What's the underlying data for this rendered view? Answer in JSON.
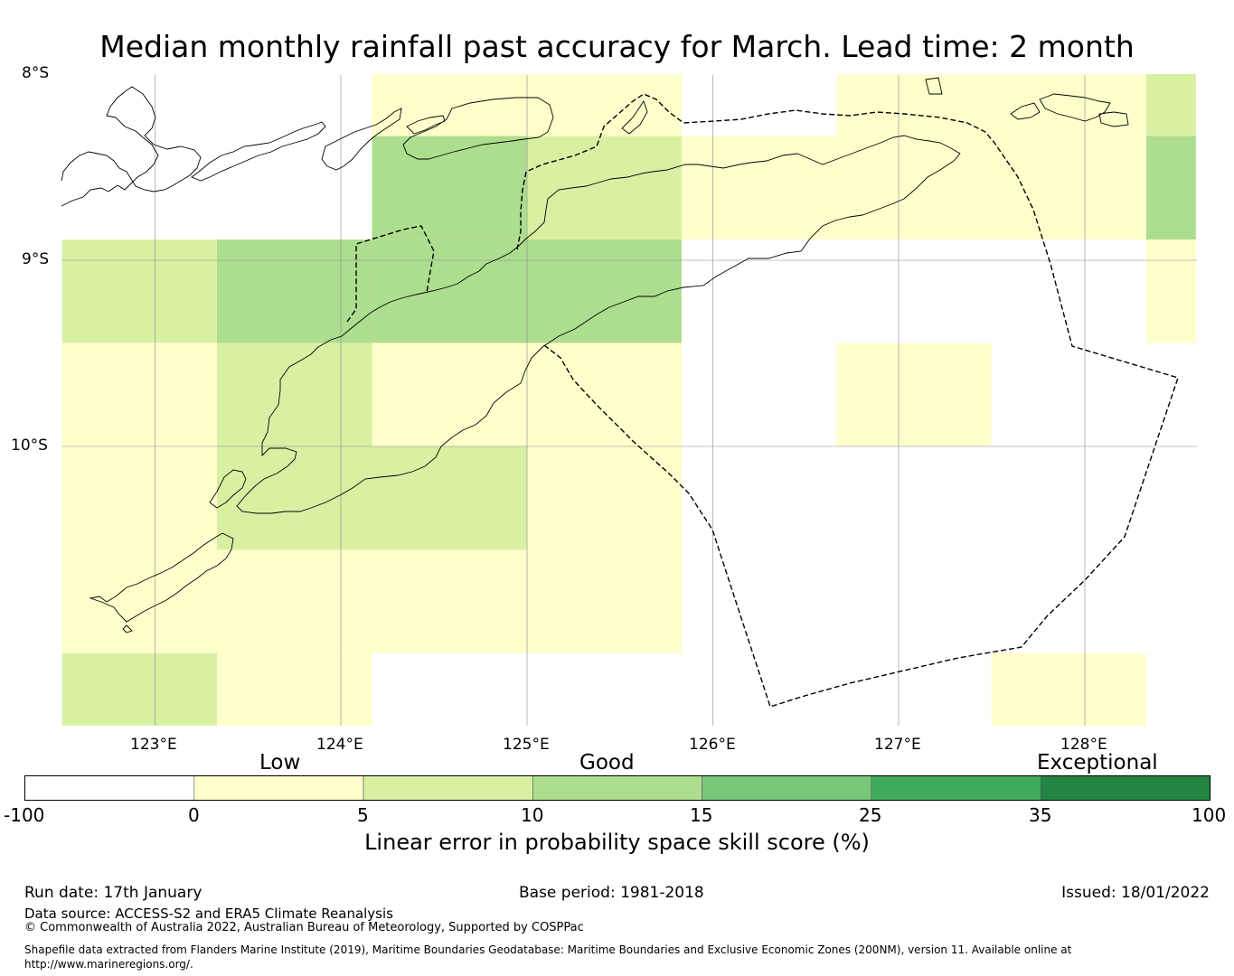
{
  "title": "Median monthly rainfall past accuracy for March. Lead time: 2 month",
  "map": {
    "lat_labels": [
      "8°S",
      "9°S",
      "10°S"
    ],
    "lon_labels": [
      "123°E",
      "124°E",
      "125°E",
      "126°E",
      "127°E",
      "128°E"
    ],
    "grid_columns_lon": [
      122.5,
      123.333,
      124.167,
      125.0,
      125.833,
      126.667,
      127.5,
      128.333,
      128.6
    ],
    "grid_rows_lat": [
      -8.0,
      -8.333,
      -8.889,
      -9.444,
      -10.0,
      -10.556,
      -11.111,
      -11.5
    ],
    "cell_classes": [
      [
        "none",
        "none",
        "low",
        "low",
        "none",
        "low",
        "low",
        "moderate"
      ],
      [
        "none",
        "none",
        "good",
        "moderate",
        "low",
        "low",
        "low",
        "good"
      ],
      [
        "moderate",
        "good",
        "good",
        "good",
        "none",
        "none",
        "none",
        "low"
      ],
      [
        "low",
        "moderate",
        "low",
        "low",
        "none",
        "low",
        "none",
        "none"
      ],
      [
        "low",
        "moderate",
        "moderate",
        "low",
        "none",
        "none",
        "none",
        "none"
      ],
      [
        "low",
        "low",
        "low",
        "low",
        "none",
        "none",
        "none",
        "none"
      ],
      [
        "moderate",
        "low",
        "none",
        "none",
        "none",
        "none",
        "low",
        "none"
      ]
    ]
  },
  "colorbar": {
    "category_labels": [
      "Low",
      "Good",
      "Exceptional"
    ],
    "tick_labels": [
      "-100",
      "0",
      "5",
      "10",
      "15",
      "25",
      "35",
      "100"
    ],
    "colors": [
      "#ffffff",
      "#ffffcc",
      "#d9f0a3",
      "#addd8e",
      "#78c679",
      "#41ab5d",
      "#238443"
    ],
    "label": "Linear error in probability space skill score (%)"
  },
  "footer": {
    "run_date": "Run date: 17th January",
    "base_period": "Base period: 1981-2018",
    "issued": "Issued: 18/01/2022",
    "data_source": "Data source: ACCESS-S2 and ERA5 Climate Reanalysis",
    "copyright": "© Commonwealth of Australia 2022, Australian Bureau of Meteorology, Supported by COSPPac",
    "shapefile": "Shapefile data extracted from Flanders Marine Institute (2019), Maritime Boundaries Geodatabase: Maritime Boundaries and Exclusive Economic Zones (200NM), version 11. Available online at http://www.marineregions.org/."
  }
}
